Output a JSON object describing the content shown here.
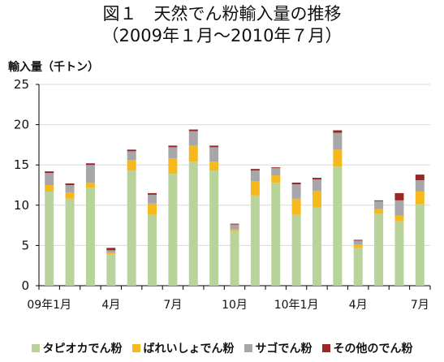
{
  "chart_data": {
    "type": "bar",
    "stacked": true,
    "title": [
      "図１　天然でん粉輸入量の推移",
      "（2009年１月～2010年７月）"
    ],
    "ylabel": "輸入量（千トン）",
    "ylim": [
      0,
      25
    ],
    "yticks": [
      0,
      5,
      10,
      15,
      20,
      25
    ],
    "grid": true,
    "legend_position": "bottom",
    "categories": [
      "09年1月",
      "",
      "",
      "4月",
      "",
      "",
      "7月",
      "",
      "",
      "10月",
      "",
      "",
      "10年1月",
      "",
      "",
      "4月",
      "",
      "",
      "7月"
    ],
    "x_tick_labels": [
      {
        "index": 0,
        "label": "09年1月"
      },
      {
        "index": 3,
        "label": "4月"
      },
      {
        "index": 6,
        "label": "7月"
      },
      {
        "index": 9,
        "label": "10月"
      },
      {
        "index": 12,
        "label": "10年1月"
      },
      {
        "index": 15,
        "label": "4月"
      },
      {
        "index": 18,
        "label": "7月"
      }
    ],
    "series": [
      {
        "name": "タピオカでん粉",
        "color": "#b8d49a",
        "values": [
          11.7,
          10.8,
          12.2,
          3.9,
          14.3,
          8.8,
          13.9,
          15.4,
          14.3,
          6.8,
          11.2,
          12.8,
          8.8,
          9.7,
          14.8,
          4.7,
          8.9,
          8.0,
          10.1
        ]
      },
      {
        "name": "ばれいしょでん粉",
        "color": "#f5b91d",
        "values": [
          0.8,
          0.8,
          0.6,
          0.2,
          1.3,
          1.4,
          1.9,
          2.0,
          1.1,
          0.2,
          1.8,
          0.9,
          2.0,
          2.1,
          2.1,
          0.4,
          0.6,
          0.7,
          1.6
        ]
      },
      {
        "name": "サゴでん粉",
        "color": "#a7a7a9",
        "values": [
          1.5,
          0.9,
          2.2,
          0.3,
          1.1,
          1.1,
          1.4,
          1.8,
          1.8,
          0.6,
          1.3,
          0.9,
          1.8,
          1.4,
          2.1,
          0.5,
          1.0,
          1.9,
          1.4
        ]
      },
      {
        "name": "その他のでん粉",
        "color": "#9a2628",
        "values": [
          0.2,
          0.2,
          0.2,
          0.3,
          0.2,
          0.2,
          0.2,
          0.2,
          0.2,
          0.1,
          0.2,
          0.1,
          0.2,
          0.2,
          0.3,
          0.1,
          0.1,
          0.9,
          0.7
        ]
      }
    ]
  }
}
